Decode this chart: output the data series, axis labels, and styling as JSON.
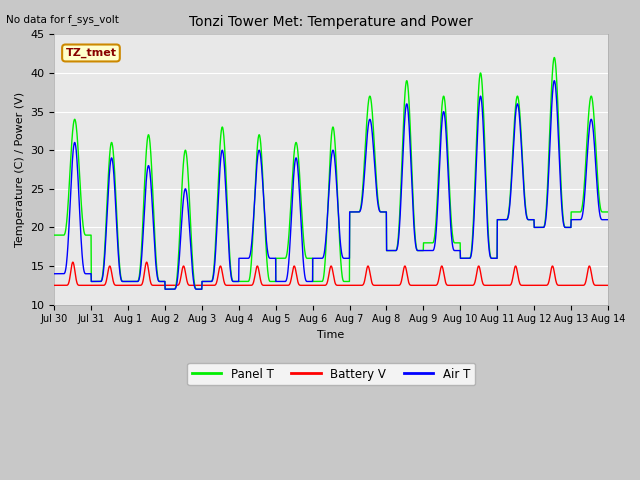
{
  "title": "Tonzi Tower Met: Temperature and Power",
  "subtitle": "No data for f_sys_volt",
  "ylabel": "Temperature (C) / Power (V)",
  "xlabel": "Time",
  "ylim": [
    10,
    45
  ],
  "yticks": [
    10,
    15,
    20,
    25,
    30,
    35,
    40,
    45
  ],
  "n_days": 15,
  "xtick_labels": [
    "Jul 30",
    "Jul 31",
    "Aug 1",
    "Aug 2",
    "Aug 3",
    "Aug 4",
    "Aug 5",
    "Aug 6",
    "Aug 7",
    "Aug 8",
    "Aug 9",
    "Aug 10",
    "Aug 11",
    "Aug 12",
    "Aug 13",
    "Aug 14"
  ],
  "panel_t_color": "#00ee00",
  "battery_v_color": "#ff0000",
  "air_t_color": "#0000ff",
  "fig_bg_color": "#c8c8c8",
  "plot_bg_color": "#e8e8e8",
  "legend_label_panel": "Panel T",
  "legend_label_battery": "Battery V",
  "legend_label_air": "Air T",
  "annotation_text": "TZ_tmet",
  "annotation_bg": "#ffffcc",
  "annotation_border": "#cc8800",
  "panel_peaks": [
    34,
    31,
    32,
    30,
    33,
    32,
    31,
    33,
    37,
    39,
    37,
    40,
    37,
    42,
    37
  ],
  "panel_nights": [
    19,
    13,
    13,
    12,
    13,
    13,
    16,
    13,
    22,
    17,
    18,
    16,
    21,
    20,
    22
  ],
  "air_peaks": [
    31,
    29,
    28,
    25,
    30,
    30,
    29,
    30,
    34,
    36,
    35,
    37,
    36,
    39,
    34
  ],
  "air_nights": [
    14,
    13,
    13,
    12,
    13,
    16,
    13,
    16,
    22,
    17,
    17,
    16,
    21,
    20,
    21
  ],
  "batt_peaks": [
    15.5,
    15,
    15.5,
    15,
    15,
    15,
    15,
    15,
    15,
    15,
    15,
    15,
    15,
    15,
    15
  ],
  "batt_base": 12.5
}
